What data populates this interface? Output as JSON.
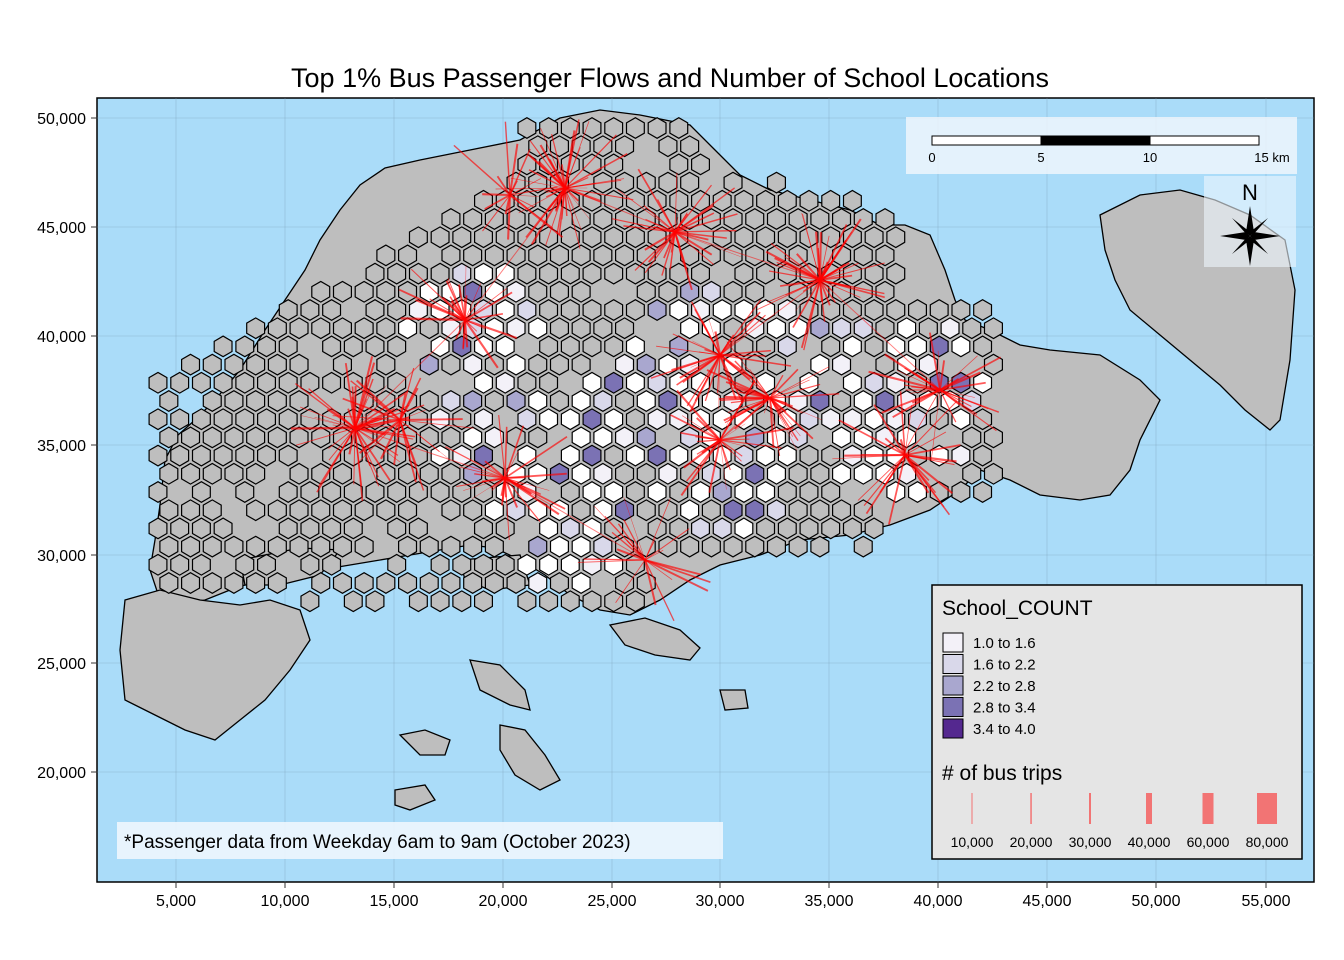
{
  "title": "Top 1% Bus Passenger Flows and Number of School Locations",
  "caption": "*Passenger data from Weekday 6am to 9am (October 2023)",
  "x_ticks": [
    "5,000",
    "10,000",
    "15,000",
    "20,000",
    "25,000",
    "30,000",
    "35,000",
    "40,000",
    "45,000",
    "50,000",
    "55,000"
  ],
  "y_ticks": [
    "50,000",
    "45,000",
    "40,000",
    "35,000",
    "30,000",
    "25,000",
    "20,000"
  ],
  "scale_bar": {
    "labels": [
      "0",
      "5",
      "10",
      "15 km"
    ]
  },
  "north_arrow": {
    "label": "N"
  },
  "legend_fill": {
    "title": "School_COUNT",
    "entries": [
      {
        "label": "1.0 to 1.6",
        "color": "#f3f1f8"
      },
      {
        "label": "1.6 to 2.2",
        "color": "#d9d8ea"
      },
      {
        "label": "2.2 to 2.8",
        "color": "#a9a7cf"
      },
      {
        "label": "2.8 to 3.4",
        "color": "#7b72b4"
      },
      {
        "label": "3.4 to 4.0",
        "color": "#54288f"
      }
    ]
  },
  "legend_lines": {
    "title": "# of bus trips",
    "entries": [
      "10,000",
      "20,000",
      "30,000",
      "40,000",
      "60,000",
      "80,000"
    ],
    "color": "#f27474"
  },
  "colors": {
    "water": "#aadcf9",
    "land": "#bebebe",
    "hex_default": "#bebebe",
    "flow": "#ff0000"
  }
}
